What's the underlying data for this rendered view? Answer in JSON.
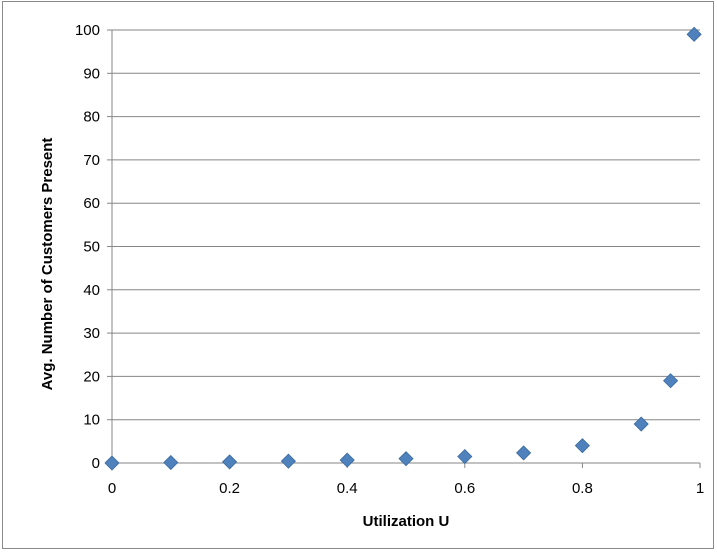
{
  "chart_data": {
    "type": "scatter",
    "title": "",
    "xlabel": "Utilization U",
    "ylabel": "Avg. Number of Customers Present",
    "xlim": [
      0,
      1
    ],
    "ylim": [
      0,
      100
    ],
    "x_ticks": [
      "0",
      "0.2",
      "0.4",
      "0.6",
      "0.8",
      "1"
    ],
    "y_ticks": [
      "0",
      "10",
      "20",
      "30",
      "40",
      "50",
      "60",
      "70",
      "80",
      "90",
      "100"
    ],
    "grid": "horizontal major gridlines",
    "legend": "none",
    "marker": "diamond",
    "series": [
      {
        "color": "#4f81bd",
        "points": [
          {
            "x": 0,
            "y": 0
          },
          {
            "x": 0.1,
            "y": 0.11
          },
          {
            "x": 0.2,
            "y": 0.25
          },
          {
            "x": 0.3,
            "y": 0.43
          },
          {
            "x": 0.4,
            "y": 0.67
          },
          {
            "x": 0.5,
            "y": 1
          },
          {
            "x": 0.6,
            "y": 1.5
          },
          {
            "x": 0.7,
            "y": 2.33
          },
          {
            "x": 0.8,
            "y": 4
          },
          {
            "x": 0.9,
            "y": 9
          },
          {
            "x": 0.95,
            "y": 19
          },
          {
            "x": 0.99,
            "y": 99
          }
        ]
      }
    ]
  }
}
